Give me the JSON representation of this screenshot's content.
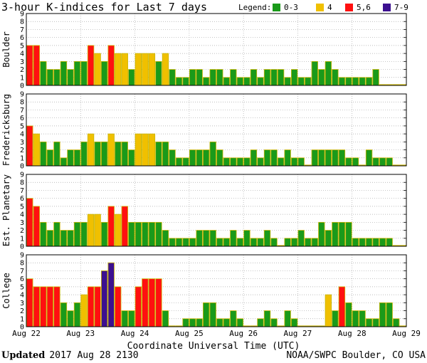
{
  "colors": {
    "low": "#1a9a1a",
    "mid": "#f0c000",
    "high": "#ff1010",
    "severe": "#3c1090",
    "edge": "#c8b400",
    "grid": "#a8a8a8"
  },
  "chart_data": {
    "type": "bar",
    "title": "3-hour K-indices for Last 7 days",
    "legend_title": "Legend:",
    "legend": [
      {
        "label": "0-3",
        "color": "#1a9a1a"
      },
      {
        "label": "4",
        "color": "#f0c000"
      },
      {
        "label": "5,6",
        "color": "#ff1010"
      },
      {
        "label": "7-9",
        "color": "#3c1090"
      }
    ],
    "xlabel": "Coordinate Universal Time (UTC)",
    "x_ticks": [
      "Aug 22",
      "Aug 23",
      "Aug 24",
      "Aug 25",
      "Aug 26",
      "Aug 27",
      "Aug 28",
      "Aug 29"
    ],
    "ylim": [
      0,
      9
    ],
    "y_ticks": [
      "0",
      "1",
      "2",
      "3",
      "4",
      "5",
      "6",
      "7",
      "8",
      "9"
    ],
    "series": [
      {
        "name": "Boulder",
        "values": [
          5,
          5,
          3,
          2,
          2,
          3,
          2,
          3,
          3,
          5,
          4,
          3,
          5,
          4,
          4,
          2,
          4,
          4,
          4,
          3,
          4,
          2,
          1,
          1,
          2,
          2,
          1,
          2,
          2,
          1,
          2,
          1,
          1,
          2,
          1,
          2,
          2,
          2,
          1,
          2,
          1,
          1,
          3,
          2,
          3,
          2,
          1,
          1,
          1,
          1,
          1,
          2,
          0,
          0,
          0,
          0
        ]
      },
      {
        "name": "Fredericksburg",
        "values": [
          5,
          4,
          3,
          2,
          3,
          1,
          2,
          2,
          3,
          4,
          3,
          3,
          4,
          3,
          3,
          2,
          4,
          4,
          4,
          3,
          3,
          2,
          1,
          1,
          2,
          2,
          2,
          3,
          2,
          1,
          1,
          1,
          1,
          2,
          1,
          2,
          2,
          1,
          2,
          1,
          1,
          0,
          2,
          2,
          2,
          2,
          2,
          1,
          1,
          0,
          2,
          1,
          1,
          1,
          0,
          0
        ]
      },
      {
        "name": "Est. Planetary",
        "values": [
          6,
          5,
          3,
          2,
          3,
          2,
          2,
          3,
          3,
          4,
          4,
          3,
          5,
          4,
          5,
          3,
          3,
          3,
          3,
          3,
          2,
          1,
          1,
          1,
          1,
          2,
          2,
          2,
          1,
          1,
          2,
          1,
          2,
          1,
          1,
          2,
          1,
          0,
          1,
          1,
          2,
          1,
          1,
          3,
          2,
          3,
          3,
          3,
          1,
          1,
          1,
          1,
          1,
          1,
          0,
          0
        ]
      },
      {
        "name": "College",
        "values": [
          6,
          5,
          5,
          5,
          5,
          3,
          2,
          3,
          4,
          5,
          5,
          7,
          8,
          5,
          2,
          2,
          5,
          6,
          6,
          6,
          2,
          0,
          0,
          1,
          1,
          1,
          3,
          3,
          1,
          1,
          2,
          1,
          0,
          0,
          1,
          2,
          1,
          0,
          2,
          1,
          0,
          0,
          0,
          0,
          4,
          2,
          5,
          3,
          2,
          2,
          1,
          1,
          3,
          3,
          1,
          0
        ]
      }
    ]
  },
  "footer": {
    "updated_label": "Updated",
    "updated_time": "2017 Aug 28 2130",
    "source": "NOAA/SWPC Boulder, CO USA"
  }
}
